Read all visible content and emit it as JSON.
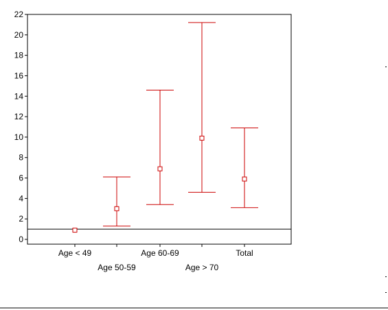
{
  "chart_data": {
    "type": "errorbar",
    "title": "",
    "xlabel": "",
    "ylabel": "",
    "ylim": [
      0,
      22
    ],
    "yticks": [
      0,
      2,
      4,
      6,
      8,
      10,
      12,
      14,
      16,
      18,
      20,
      22
    ],
    "reference_line": 1,
    "grid": false,
    "color": "#cc0000",
    "categories": [
      "Age < 49",
      "Age 50-59",
      "Age 60-69",
      "Age > 70",
      "Total"
    ],
    "points": [
      {
        "category": "Age < 49",
        "mean": 0.9,
        "lower": null,
        "upper": null
      },
      {
        "category": "Age 50-59",
        "mean": 3.0,
        "lower": 1.3,
        "upper": 6.1
      },
      {
        "category": "Age 60-69",
        "mean": 6.9,
        "lower": 3.4,
        "upper": 14.6
      },
      {
        "category": "Age > 70",
        "mean": 9.9,
        "lower": 4.6,
        "upper": 21.2
      },
      {
        "category": "Total",
        "mean": 5.9,
        "lower": 3.1,
        "upper": 10.9
      }
    ]
  }
}
